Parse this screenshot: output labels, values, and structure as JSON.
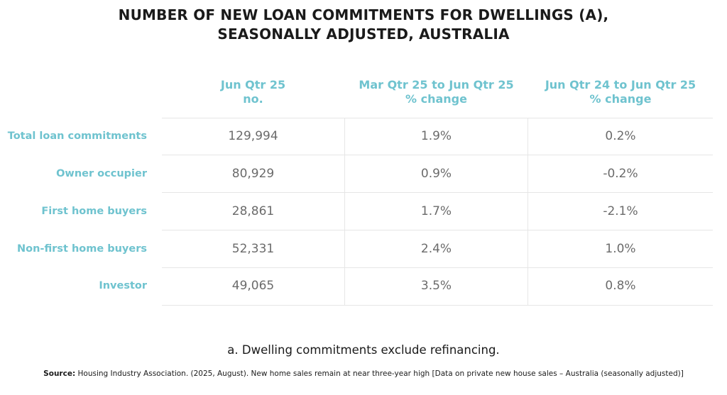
{
  "title_lines": [
    "NUMBER OF NEW LOAN COMMITMENTS FOR DWELLINGS (A),",
    "SEASONALLY ADJUSTED, AUSTRALIA"
  ],
  "chart_data": {
    "type": "table",
    "columns": [
      {
        "lines": [
          "Jun Qtr 25",
          "no."
        ]
      },
      {
        "lines": [
          "Mar Qtr 25 to Jun Qtr 25",
          "% change"
        ]
      },
      {
        "lines": [
          "Jun Qtr 24 to Jun Qtr 25",
          "% change"
        ]
      }
    ],
    "rows": [
      {
        "label": "Total loan commitments",
        "values": [
          "129,994",
          "1.9%",
          "0.2%"
        ]
      },
      {
        "label": "Owner occupier",
        "values": [
          "80,929",
          "0.9%",
          "-0.2%"
        ]
      },
      {
        "label": "First home buyers",
        "values": [
          "28,861",
          "1.7%",
          "-2.1%"
        ]
      },
      {
        "label": "Non-first home buyers",
        "values": [
          "52,331",
          "2.4%",
          "1.0%"
        ]
      },
      {
        "label": "Investor",
        "values": [
          "49,065",
          "3.5%",
          "0.8%"
        ]
      }
    ]
  },
  "footnote": "a. Dwelling commitments exclude refinancing.",
  "source": {
    "label": "Source:",
    "text": " Housing Industry Association. (2025, August). New home sales remain at near three-year high [Data on private new house sales – Australia (seasonally adjusted)]"
  },
  "colors": {
    "accent": "#6fc3cf",
    "value_text": "#6b6b6b",
    "title_text": "#1a1a1a",
    "grid": "#e6e6e6"
  }
}
